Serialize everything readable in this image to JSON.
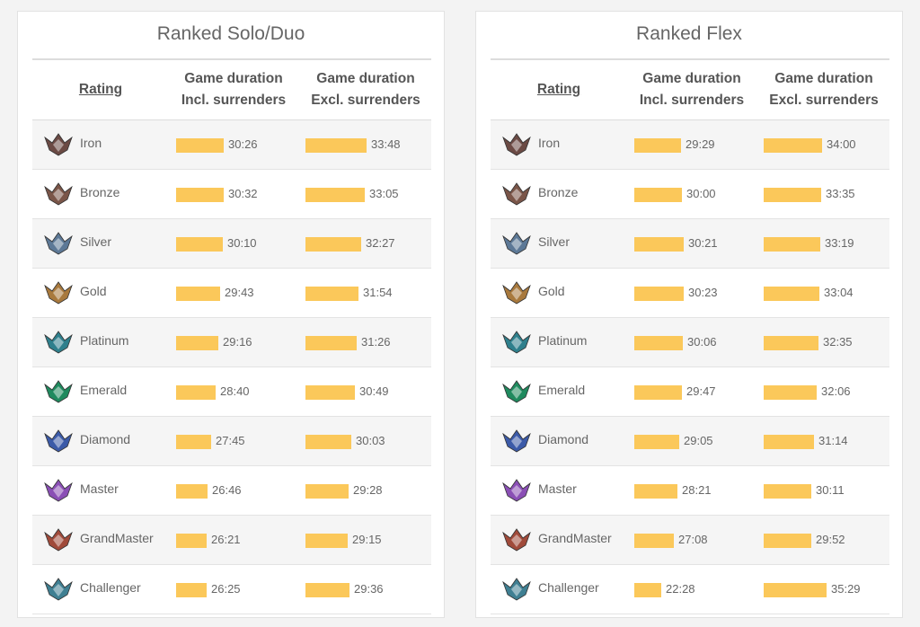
{
  "tables": [
    {
      "title": "Ranked Solo/Duo",
      "headers": {
        "rating": "Rating",
        "incl_line1": "Game duration",
        "incl_line2": "Incl. surrenders",
        "excl_line1": "Game duration",
        "excl_line2": "Excl. surrenders"
      },
      "rows": [
        {
          "rank": "Iron",
          "icon": "iron-rank-icon",
          "color": "#6b4a44",
          "incl": "30:26",
          "incl_pct": 0.7,
          "excl": "33:48",
          "excl_pct": 0.91
        },
        {
          "rank": "Bronze",
          "icon": "bronze-rank-icon",
          "color": "#7a5548",
          "incl": "30:32",
          "incl_pct": 0.71,
          "excl": "33:05",
          "excl_pct": 0.88
        },
        {
          "rank": "Silver",
          "icon": "silver-rank-icon",
          "color": "#5c7896",
          "incl": "30:10",
          "incl_pct": 0.69,
          "excl": "32:27",
          "excl_pct": 0.83
        },
        {
          "rank": "Gold",
          "icon": "gold-rank-icon",
          "color": "#a8793d",
          "incl": "29:43",
          "incl_pct": 0.65,
          "excl": "31:54",
          "excl_pct": 0.79
        },
        {
          "rank": "Platinum",
          "icon": "platinum-rank-icon",
          "color": "#2e7f8c",
          "incl": "29:16",
          "incl_pct": 0.63,
          "excl": "31:26",
          "excl_pct": 0.76
        },
        {
          "rank": "Emerald",
          "icon": "emerald-rank-icon",
          "color": "#1f8a5e",
          "incl": "28:40",
          "incl_pct": 0.59,
          "excl": "30:49",
          "excl_pct": 0.73
        },
        {
          "rank": "Diamond",
          "icon": "diamond-rank-icon",
          "color": "#3b5aa8",
          "incl": "27:45",
          "incl_pct": 0.52,
          "excl": "30:03",
          "excl_pct": 0.68
        },
        {
          "rank": "Master",
          "icon": "master-rank-icon",
          "color": "#8a4fb5",
          "incl": "26:46",
          "incl_pct": 0.47,
          "excl": "29:28",
          "excl_pct": 0.64
        },
        {
          "rank": "GrandMaster",
          "icon": "grandmaster-rank-icon",
          "color": "#a04a3a",
          "incl": "26:21",
          "incl_pct": 0.45,
          "excl": "29:15",
          "excl_pct": 0.63
        },
        {
          "rank": "Challenger",
          "icon": "challenger-rank-icon",
          "color": "#3f7f92",
          "incl": "26:25",
          "incl_pct": 0.45,
          "excl": "29:36",
          "excl_pct": 0.65
        }
      ]
    },
    {
      "title": "Ranked Flex",
      "headers": {
        "rating": "Rating",
        "incl_line1": "Game duration",
        "incl_line2": "Incl. surrenders",
        "excl_line1": "Game duration",
        "excl_line2": "Excl. surrenders"
      },
      "rows": [
        {
          "rank": "Iron",
          "icon": "iron-rank-icon",
          "color": "#6b4a44",
          "incl": "29:29",
          "incl_pct": 0.69,
          "excl": "34:00",
          "excl_pct": 0.87
        },
        {
          "rank": "Bronze",
          "icon": "bronze-rank-icon",
          "color": "#7a5548",
          "incl": "30:00",
          "incl_pct": 0.71,
          "excl": "33:35",
          "excl_pct": 0.85
        },
        {
          "rank": "Silver",
          "icon": "silver-rank-icon",
          "color": "#5c7896",
          "incl": "30:21",
          "incl_pct": 0.73,
          "excl": "33:19",
          "excl_pct": 0.84
        },
        {
          "rank": "Gold",
          "icon": "gold-rank-icon",
          "color": "#a8793d",
          "incl": "30:23",
          "incl_pct": 0.73,
          "excl": "33:04",
          "excl_pct": 0.83
        },
        {
          "rank": "Platinum",
          "icon": "platinum-rank-icon",
          "color": "#2e7f8c",
          "incl": "30:06",
          "incl_pct": 0.72,
          "excl": "32:35",
          "excl_pct": 0.81
        },
        {
          "rank": "Emerald",
          "icon": "emerald-rank-icon",
          "color": "#1f8a5e",
          "incl": "29:47",
          "incl_pct": 0.7,
          "excl": "32:06",
          "excl_pct": 0.79
        },
        {
          "rank": "Diamond",
          "icon": "diamond-rank-icon",
          "color": "#3b5aa8",
          "incl": "29:05",
          "incl_pct": 0.67,
          "excl": "31:14",
          "excl_pct": 0.75
        },
        {
          "rank": "Master",
          "icon": "master-rank-icon",
          "color": "#8a4fb5",
          "incl": "28:21",
          "incl_pct": 0.64,
          "excl": "30:11",
          "excl_pct": 0.71
        },
        {
          "rank": "GrandMaster",
          "icon": "grandmaster-rank-icon",
          "color": "#a04a3a",
          "incl": "27:08",
          "incl_pct": 0.59,
          "excl": "29:52",
          "excl_pct": 0.7
        },
        {
          "rank": "Challenger",
          "icon": "challenger-rank-icon",
          "color": "#3f7f92",
          "incl": "22:28",
          "incl_pct": 0.4,
          "excl": "35:29",
          "excl_pct": 0.93
        }
      ]
    }
  ],
  "colors": {
    "bar": "#fbc85a",
    "text": "#666666",
    "row_alt": "#f5f5f5"
  }
}
